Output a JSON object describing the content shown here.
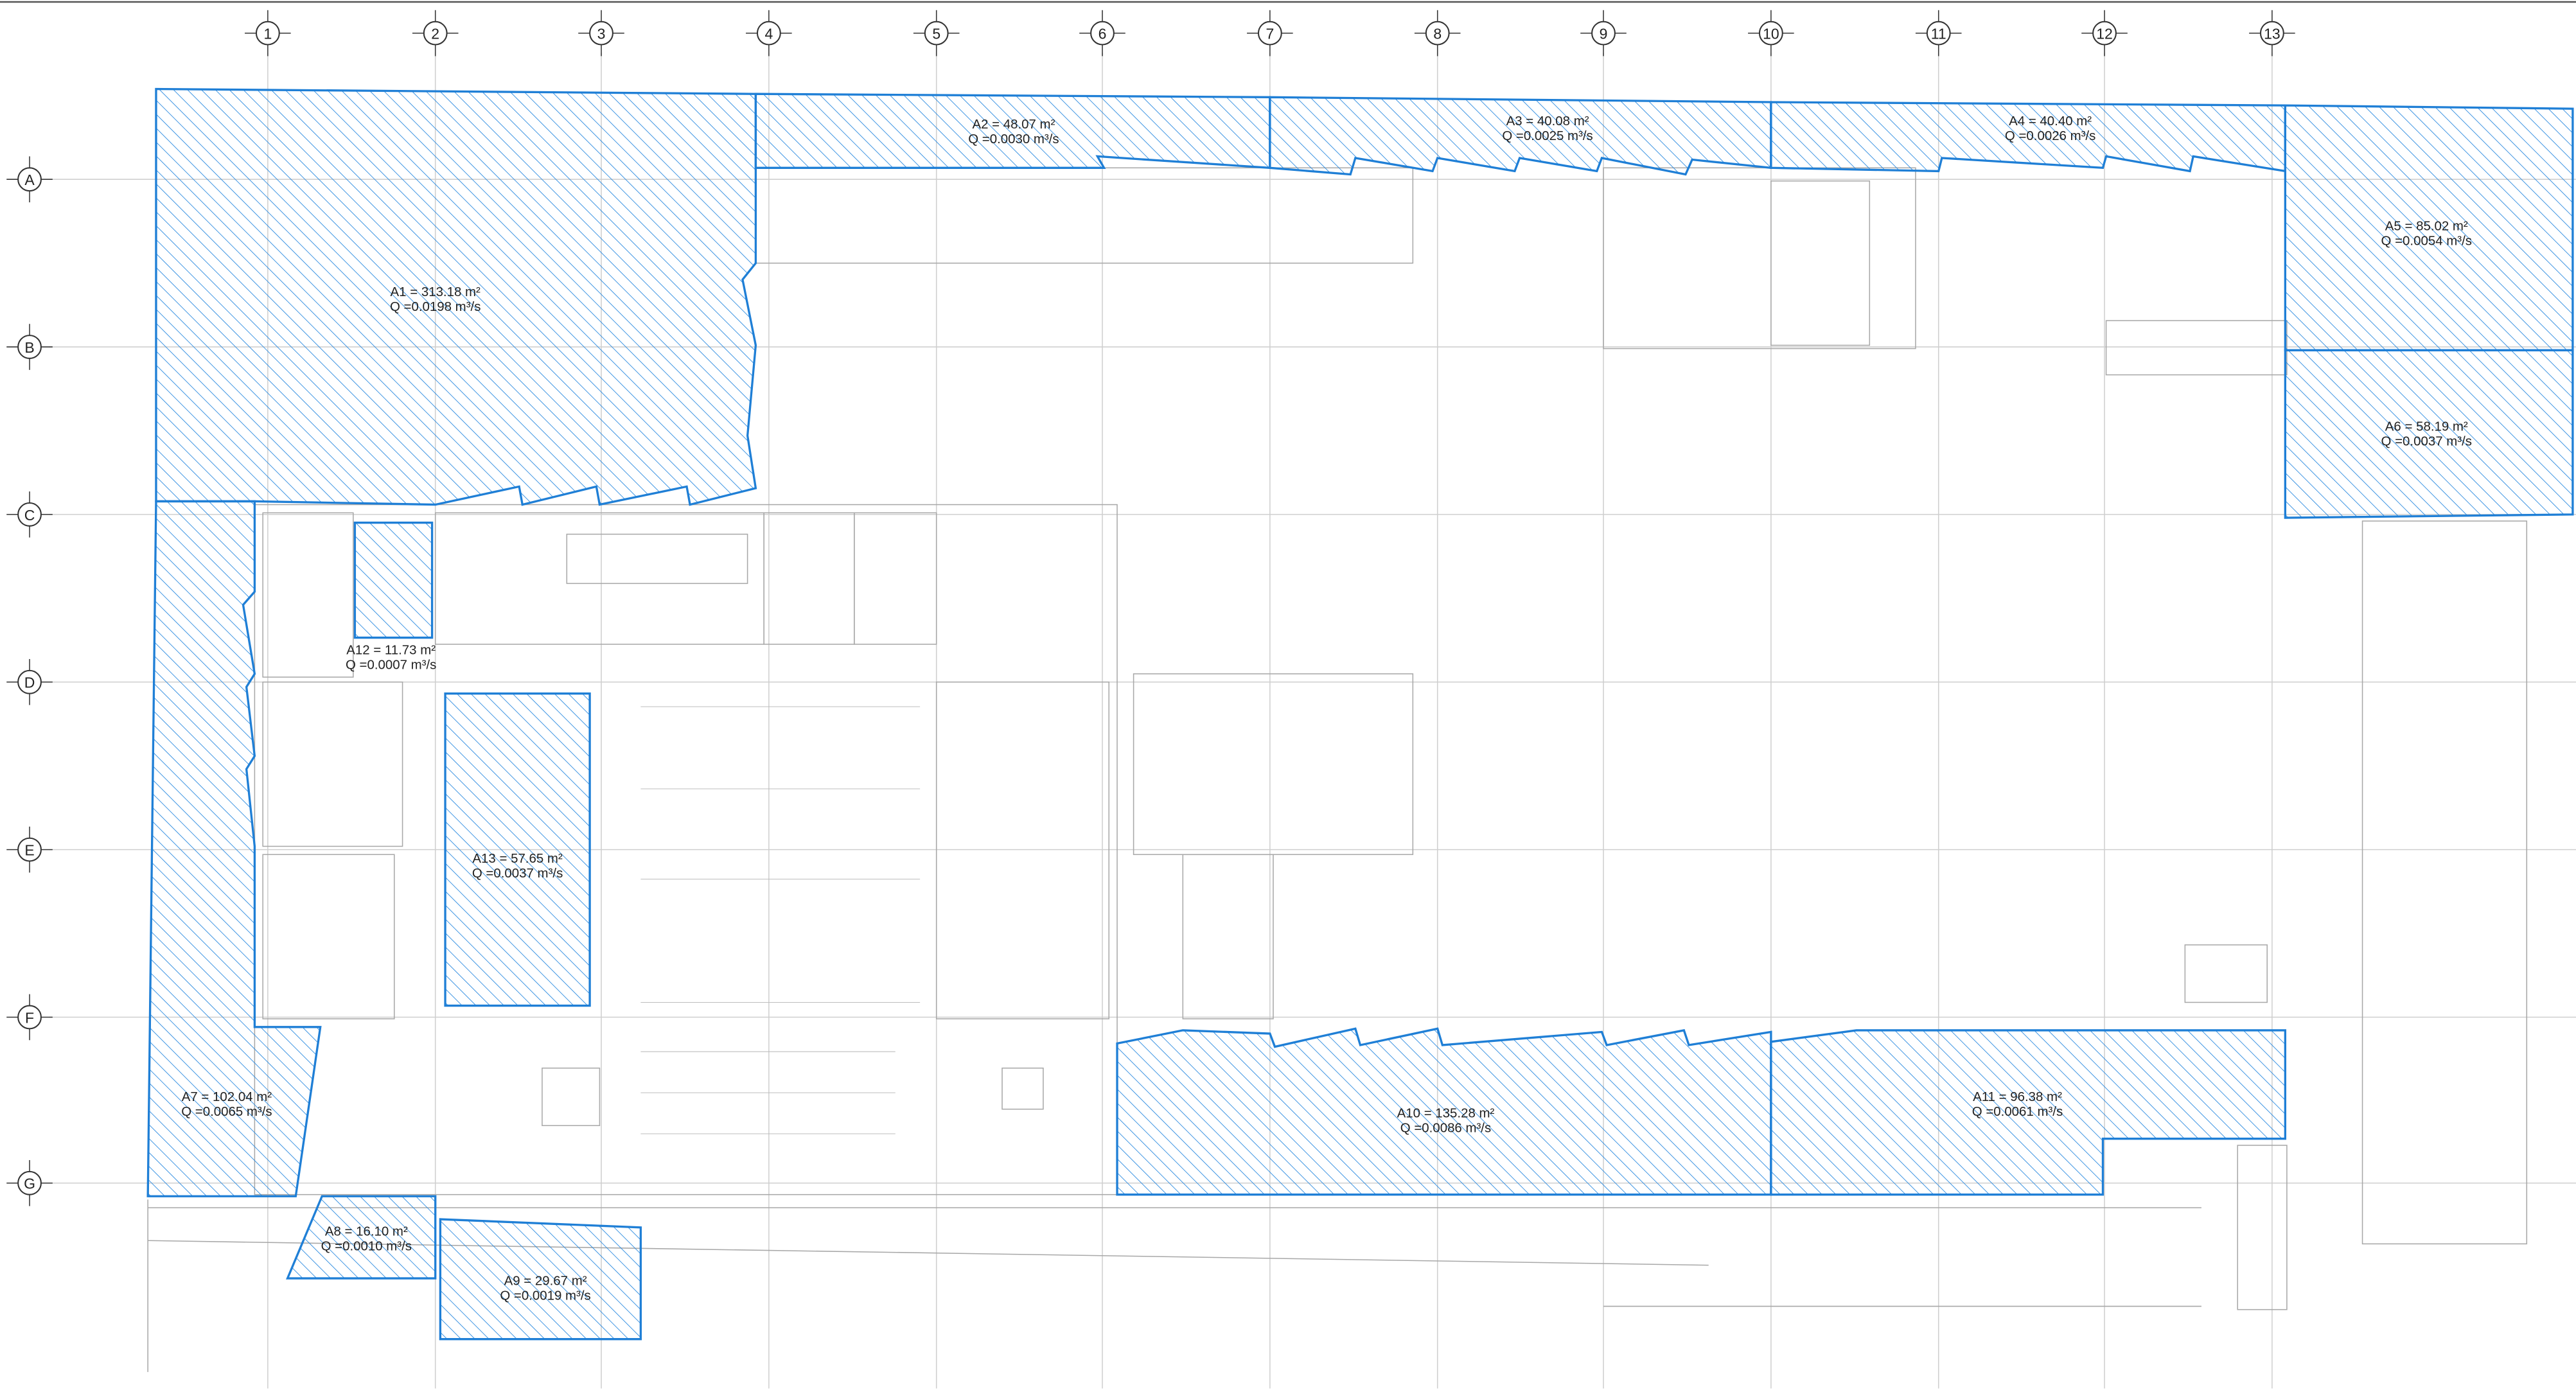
{
  "grid": {
    "columns": [
      "1",
      "2",
      "3",
      "4",
      "5",
      "6",
      "7",
      "8",
      "9",
      "10",
      "11",
      "12",
      "13"
    ],
    "rows": [
      "A",
      "B",
      "C",
      "D",
      "E",
      "F",
      "G"
    ]
  },
  "areas": [
    {
      "label": "A1 = 313.18 m²",
      "flow": "Q =0.0198 m³/s"
    },
    {
      "label": "A2 = 48.07 m²",
      "flow": "Q =0.0030 m³/s"
    },
    {
      "label": "A3 = 40.08 m²",
      "flow": "Q =0.0025 m³/s"
    },
    {
      "label": "A4 = 40.40 m²",
      "flow": "Q =0.0026 m³/s"
    },
    {
      "label": "A5 = 85.02 m²",
      "flow": "Q =0.0054 m³/s"
    },
    {
      "label": "A6 = 58.19 m²",
      "flow": "Q =0.0037 m³/s"
    },
    {
      "label": "A7 = 102.04 m²",
      "flow": "Q =0.0065 m³/s"
    },
    {
      "label": "A8 = 16.10 m²",
      "flow": "Q =0.0010 m³/s"
    },
    {
      "label": "A9 = 29.67 m²",
      "flow": "Q =0.0019 m³/s"
    },
    {
      "label": "A10 = 135.28 m²",
      "flow": "Q =0.0086 m³/s"
    },
    {
      "label": "A11 = 96.38 m²",
      "flow": "Q =0.0061 m³/s"
    },
    {
      "label": "A12 = 11.73 m²",
      "flow": "Q =0.0007 m³/s"
    },
    {
      "label": "A13 = 57.65 m²",
      "flow": "Q =0.0037 m³/s"
    }
  ]
}
